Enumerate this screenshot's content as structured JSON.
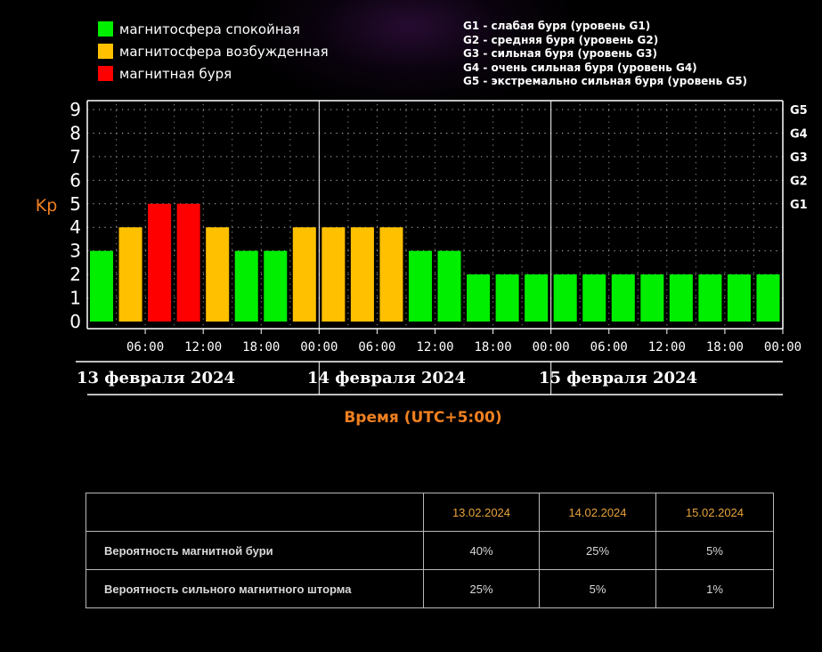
{
  "legend": {
    "quiet": "магнитосфера спокойная",
    "excited": "магнитосфера возбужденная",
    "storm": "магнитная буря"
  },
  "g_legend": [
    "G1 - слабая буря (уровень G1)",
    "G2 - средняя буря (уровень G2)",
    "G3 - сильная буря (уровень G3)",
    "G4 - очень сильная буря (уровень G4)",
    "G5 - экстремально сильная буря (уровень G5)"
  ],
  "colors": {
    "quiet": "#00ee00",
    "excited": "#ffc000",
    "storm": "#ff0000",
    "axis": "#ffffff",
    "accent": "#f08020",
    "header": "#e8a33a"
  },
  "chart_data": {
    "type": "bar",
    "ylabel": "Kp",
    "ylim": [
      0,
      9
    ],
    "yticks": [
      "0",
      "1",
      "2",
      "3",
      "4",
      "5",
      "6",
      "7",
      "8",
      "9"
    ],
    "g_levels": [
      {
        "label": "G1",
        "y": 5
      },
      {
        "label": "G2",
        "y": 6
      },
      {
        "label": "G3",
        "y": 7
      },
      {
        "label": "G4",
        "y": 8
      },
      {
        "label": "G5",
        "y": 9
      }
    ],
    "xtick_labels": [
      "06:00",
      "12:00",
      "18:00",
      "00:00",
      "06:00",
      "12:00",
      "18:00",
      "00:00",
      "06:00",
      "12:00",
      "18:00",
      "00:00"
    ],
    "xtick_hours": [
      6,
      12,
      18,
      24,
      30,
      36,
      42,
      48,
      54,
      60,
      66,
      72
    ],
    "day_labels": [
      "13 февраля 2024",
      "14 февраля 2024",
      "15 февраля 2024"
    ],
    "xlabel": "Время (UTC+5:00)",
    "values": [
      3,
      4,
      5,
      5,
      4,
      3,
      3,
      4,
      4,
      4,
      4,
      3,
      3,
      2,
      2,
      2,
      2,
      2,
      2,
      2,
      2,
      2,
      2,
      2
    ],
    "grid": true
  },
  "table": {
    "headers": [
      "",
      "13.02.2024",
      "14.02.2024",
      "15.02.2024"
    ],
    "rows": [
      {
        "label": "Вероятность магнитной бури",
        "values": [
          "40%",
          "25%",
          "5%"
        ]
      },
      {
        "label": "Вероятность сильного магнитного шторма",
        "values": [
          "25%",
          "5%",
          "1%"
        ]
      }
    ]
  }
}
